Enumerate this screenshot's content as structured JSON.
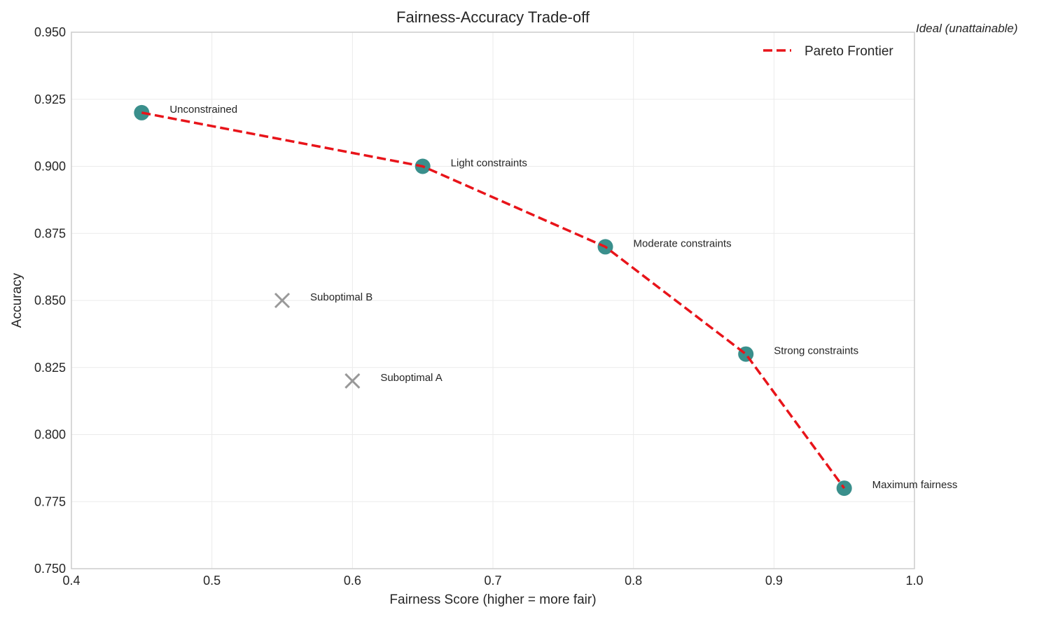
{
  "chart_data": {
    "type": "scatter",
    "title": "Fairness-Accuracy Trade-off",
    "xlabel": "Fairness Score (higher = more fair)",
    "ylabel": "Accuracy",
    "xlim": [
      0.4,
      1.0
    ],
    "ylim": [
      0.75,
      0.95
    ],
    "xticks": [
      "0.4",
      "0.5",
      "0.6",
      "0.7",
      "0.8",
      "0.9",
      "1.0"
    ],
    "yticks": [
      "0.750",
      "0.775",
      "0.800",
      "0.825",
      "0.850",
      "0.875",
      "0.900",
      "0.925",
      "0.950"
    ],
    "grid": true,
    "legend_position": "upper right",
    "series": [
      {
        "name": "Pareto Frontier",
        "style": "dashed-line-with-markers",
        "line_color": "#e8141a",
        "marker_color": "#3a8f8c",
        "points": [
          {
            "x": 0.45,
            "y": 0.92,
            "label": "Unconstrained"
          },
          {
            "x": 0.65,
            "y": 0.9,
            "label": "Light constraints"
          },
          {
            "x": 0.78,
            "y": 0.87,
            "label": "Moderate constraints"
          },
          {
            "x": 0.88,
            "y": 0.83,
            "label": "Strong constraints"
          },
          {
            "x": 0.95,
            "y": 0.78,
            "label": "Maximum fairness"
          }
        ]
      },
      {
        "name": "Suboptimal",
        "style": "x-markers",
        "marker_color": "#999999",
        "points": [
          {
            "x": 0.6,
            "y": 0.82,
            "label": "Suboptimal A"
          },
          {
            "x": 0.55,
            "y": 0.85,
            "label": "Suboptimal B"
          }
        ]
      }
    ],
    "annotations": [
      {
        "text": "Ideal (unattainable)",
        "x": 1.0,
        "y": 0.95,
        "style": "italic"
      }
    ]
  },
  "legend": {
    "entries": [
      {
        "label": "Pareto Frontier",
        "color": "#e8141a"
      }
    ]
  }
}
